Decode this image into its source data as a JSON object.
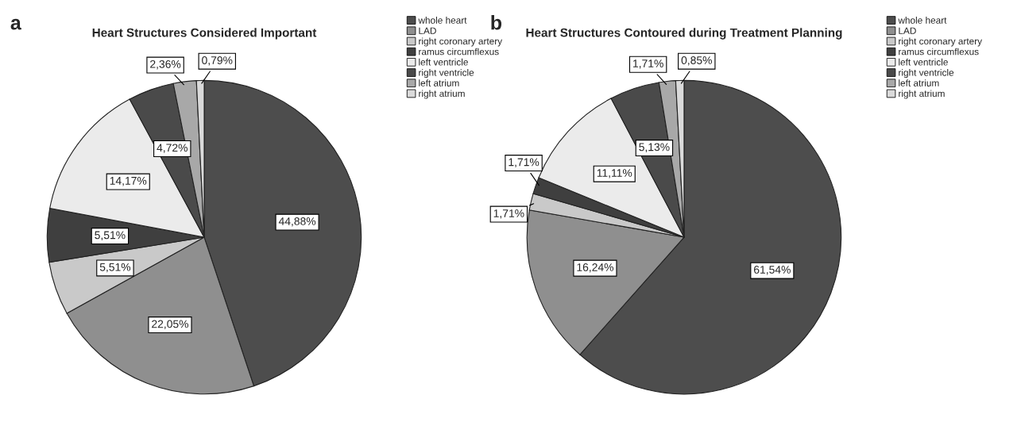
{
  "chart_data": [
    {
      "type": "pie",
      "title": "Heart Structures Considered Important",
      "annotations": [
        "a"
      ],
      "legend": "top right",
      "categories": [
        "whole heart",
        "LAD",
        "right coronary artery",
        "ramus circumflexus",
        "left ventricle",
        "right ventricle",
        "left atrium",
        "right atrium"
      ],
      "values": [
        44.88,
        22.05,
        5.51,
        5.51,
        14.17,
        4.72,
        2.36,
        0.79
      ],
      "value_labels": [
        "44,88%",
        "22,05%",
        "5,51%",
        "5,51%",
        "14,17%",
        "4,72%",
        "2,36%",
        "0,79%"
      ],
      "colors": [
        "#4d4d4d",
        "#8f8f8f",
        "#c9c9c9",
        "#3f3f3f",
        "#ebebeb",
        "#4a4a4a",
        "#a8a8a8",
        "#dadada"
      ]
    },
    {
      "type": "pie",
      "title": "Heart Structures Contoured during Treatment Planning",
      "annotations": [
        "b"
      ],
      "legend": "top right",
      "categories": [
        "whole heart",
        "LAD",
        "right coronary artery",
        "ramus circumflexus",
        "left ventricle",
        "right ventricle",
        "left atrium",
        "right atrium"
      ],
      "values": [
        61.54,
        16.24,
        1.71,
        1.71,
        11.11,
        5.13,
        1.71,
        0.85
      ],
      "value_labels": [
        "61,54%",
        "16,24%",
        "1,71%",
        "1,71%",
        "11,11%",
        "5,13%",
        "1,71%",
        "0,85%"
      ],
      "colors": [
        "#4d4d4d",
        "#8f8f8f",
        "#c9c9c9",
        "#3f3f3f",
        "#ebebeb",
        "#4a4a4a",
        "#a8a8a8",
        "#dadada"
      ]
    }
  ]
}
